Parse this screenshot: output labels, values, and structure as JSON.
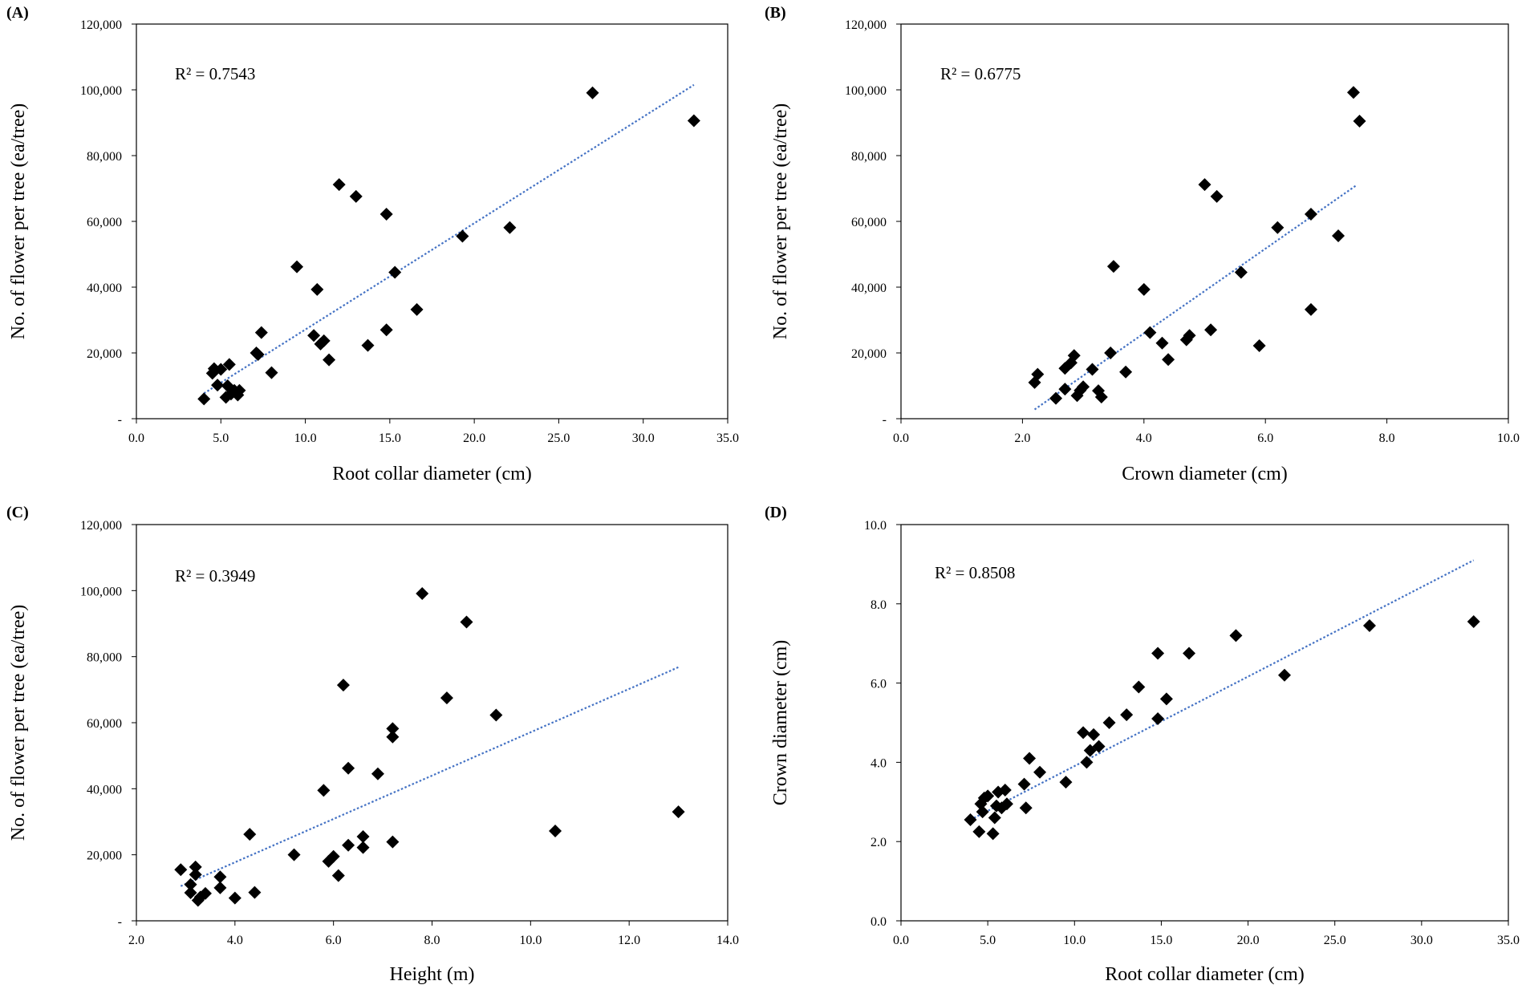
{
  "chart_data": [
    {
      "type": "scatter",
      "panel_label": "(A)",
      "r2_label": "R² = 0.7543",
      "xlabel": "Root collar  diameter  (cm)",
      "ylabel": "No. of flower  per tree  (ea/tree)",
      "xlim": [
        0,
        35
      ],
      "ylim": [
        0,
        120000
      ],
      "xticks": [
        0,
        5,
        10,
        15,
        20,
        25,
        30,
        35
      ],
      "xtick_labels": [
        "0.0",
        "5.0",
        "10.0",
        "15.0",
        "20.0",
        "25.0",
        "30.0",
        "35.0"
      ],
      "yticks": [
        0,
        20000,
        40000,
        60000,
        80000,
        100000,
        120000
      ],
      "ytick_labels": [
        "-",
        "20,000",
        "40,000",
        "60,000",
        "80,000",
        "100,000",
        "120,000"
      ],
      "grid": false,
      "marker_color": "#000000",
      "trendline_color": "#4472c4",
      "trendline": [
        [
          4.0,
          7700
        ],
        [
          33.0,
          101500
        ]
      ],
      "points": [
        [
          4.0,
          6000
        ],
        [
          4.5,
          13800
        ],
        [
          4.6,
          15200
        ],
        [
          4.8,
          10200
        ],
        [
          5.0,
          15000
        ],
        [
          5.3,
          6500
        ],
        [
          5.4,
          10000
        ],
        [
          5.5,
          16500
        ],
        [
          5.6,
          7500
        ],
        [
          5.8,
          8600
        ],
        [
          6.0,
          7200
        ],
        [
          6.1,
          8600
        ],
        [
          7.1,
          20000
        ],
        [
          7.2,
          19500
        ],
        [
          7.4,
          26200
        ],
        [
          8.0,
          14000
        ],
        [
          9.5,
          46200
        ],
        [
          10.5,
          25300
        ],
        [
          10.7,
          39300
        ],
        [
          10.9,
          22700
        ],
        [
          11.1,
          23700
        ],
        [
          11.4,
          17900
        ],
        [
          12.0,
          71200
        ],
        [
          13.0,
          67600
        ],
        [
          13.7,
          22300
        ],
        [
          14.8,
          62200
        ],
        [
          14.8,
          27000
        ],
        [
          15.3,
          44500
        ],
        [
          16.6,
          33200
        ],
        [
          19.3,
          55500
        ],
        [
          22.1,
          58100
        ],
        [
          27.0,
          99100
        ],
        [
          33.0,
          90600
        ]
      ]
    },
    {
      "type": "scatter",
      "panel_label": "(B)",
      "r2_label": "R² = 0.6775",
      "xlabel": "Crown diameter  (cm)",
      "ylabel": "No. of flower  per tree  (ea/tree)",
      "xlim": [
        0,
        10
      ],
      "ylim": [
        0,
        120000
      ],
      "xticks": [
        0,
        2,
        4,
        6,
        8,
        10
      ],
      "xtick_labels": [
        "0.0",
        "2.0",
        "4.0",
        "6.0",
        "8.0",
        "10.0"
      ],
      "yticks": [
        0,
        20000,
        40000,
        60000,
        80000,
        100000,
        120000
      ],
      "ytick_labels": [
        "-",
        "20,000",
        "40,000",
        "60,000",
        "80,000",
        "100,000",
        "120,000"
      ],
      "grid": false,
      "marker_color": "#000000",
      "trendline_color": "#4472c4",
      "trendline": [
        [
          2.2,
          2800
        ],
        [
          7.5,
          71000
        ]
      ],
      "points": [
        [
          2.2,
          11000
        ],
        [
          2.25,
          13500
        ],
        [
          2.55,
          6200
        ],
        [
          2.7,
          9000
        ],
        [
          2.7,
          15300
        ],
        [
          2.8,
          17000
        ],
        [
          2.85,
          19200
        ],
        [
          2.9,
          7000
        ],
        [
          2.95,
          8600
        ],
        [
          3.0,
          9700
        ],
        [
          3.15,
          15000
        ],
        [
          3.25,
          8500
        ],
        [
          3.3,
          6600
        ],
        [
          3.45,
          20000
        ],
        [
          3.5,
          46300
        ],
        [
          3.7,
          14200
        ],
        [
          4.0,
          39300
        ],
        [
          4.1,
          26200
        ],
        [
          4.3,
          23000
        ],
        [
          4.4,
          18000
        ],
        [
          4.7,
          24000
        ],
        [
          4.75,
          25300
        ],
        [
          5.0,
          71200
        ],
        [
          5.1,
          27000
        ],
        [
          5.2,
          67600
        ],
        [
          5.6,
          44500
        ],
        [
          5.9,
          22200
        ],
        [
          6.2,
          58100
        ],
        [
          6.75,
          62200
        ],
        [
          6.75,
          33200
        ],
        [
          7.2,
          55600
        ],
        [
          7.45,
          99200
        ],
        [
          7.55,
          90500
        ]
      ]
    },
    {
      "type": "scatter",
      "panel_label": "(C)",
      "r2_label": "R² = 0.3949",
      "xlabel": "Height  (m)",
      "ylabel": "No. of flower  per tree  (ea/tree)",
      "xlim": [
        2,
        14
      ],
      "ylim": [
        0,
        120000
      ],
      "xticks": [
        2,
        4,
        6,
        8,
        10,
        12,
        14
      ],
      "xtick_labels": [
        "2.0",
        "4.0",
        "6.0",
        "8.0",
        "10.0",
        "12.0",
        "14.0"
      ],
      "yticks": [
        0,
        20000,
        40000,
        60000,
        80000,
        100000,
        120000
      ],
      "ytick_labels": [
        "-",
        "20,000",
        "40,000",
        "60,000",
        "80,000",
        "100,000",
        "120,000"
      ],
      "grid": false,
      "marker_color": "#000000",
      "trendline_color": "#4472c4",
      "trendline": [
        [
          2.9,
          10500
        ],
        [
          13.0,
          76800
        ]
      ],
      "points": [
        [
          2.9,
          15500
        ],
        [
          3.1,
          11000
        ],
        [
          3.1,
          8500
        ],
        [
          3.2,
          16300
        ],
        [
          3.2,
          14000
        ],
        [
          3.25,
          6200
        ],
        [
          3.3,
          7200
        ],
        [
          3.4,
          8300
        ],
        [
          3.7,
          13300
        ],
        [
          3.7,
          10000
        ],
        [
          4.0,
          6900
        ],
        [
          4.3,
          26200
        ],
        [
          4.4,
          8600
        ],
        [
          5.2,
          20000
        ],
        [
          5.8,
          39500
        ],
        [
          5.9,
          18000
        ],
        [
          6.0,
          19500
        ],
        [
          6.1,
          13700
        ],
        [
          6.2,
          71400
        ],
        [
          6.3,
          46200
        ],
        [
          6.3,
          22900
        ],
        [
          6.6,
          25500
        ],
        [
          6.6,
          22200
        ],
        [
          6.9,
          44500
        ],
        [
          7.2,
          58200
        ],
        [
          7.2,
          55700
        ],
        [
          7.2,
          23900
        ],
        [
          7.8,
          99100
        ],
        [
          8.3,
          67500
        ],
        [
          8.7,
          90500
        ],
        [
          9.3,
          62300
        ],
        [
          10.5,
          27200
        ],
        [
          13.0,
          33000
        ]
      ]
    },
    {
      "type": "scatter",
      "panel_label": "(D)",
      "r2_label": "R² = 0.8508",
      "xlabel": "Root collar  diameter  (cm)",
      "ylabel": "Crown diameter  (cm)",
      "xlim": [
        0,
        35
      ],
      "ylim": [
        0,
        10
      ],
      "xticks": [
        0,
        5,
        10,
        15,
        20,
        25,
        30,
        35
      ],
      "xtick_labels": [
        "0.0",
        "5.0",
        "10.0",
        "15.0",
        "20.0",
        "25.0",
        "30.0",
        "35.0"
      ],
      "yticks": [
        0,
        2,
        4,
        6,
        8,
        10
      ],
      "ytick_labels": [
        "0.0",
        "2.0",
        "4.0",
        "6.0",
        "8.0",
        "10.0"
      ],
      "grid": false,
      "marker_color": "#000000",
      "trendline_color": "#4472c4",
      "trendline": [
        [
          4.0,
          2.55
        ],
        [
          33.0,
          9.1
        ]
      ],
      "points": [
        [
          4.0,
          2.55
        ],
        [
          4.5,
          2.25
        ],
        [
          4.6,
          2.95
        ],
        [
          4.7,
          2.75
        ],
        [
          4.8,
          3.1
        ],
        [
          5.0,
          3.15
        ],
        [
          5.3,
          2.2
        ],
        [
          5.4,
          2.6
        ],
        [
          5.5,
          2.9
        ],
        [
          5.6,
          3.25
        ],
        [
          5.8,
          2.85
        ],
        [
          6.0,
          3.3
        ],
        [
          6.1,
          2.95
        ],
        [
          7.1,
          3.45
        ],
        [
          7.2,
          2.85
        ],
        [
          7.4,
          4.1
        ],
        [
          8.0,
          3.75
        ],
        [
          9.5,
          3.5
        ],
        [
          10.5,
          4.75
        ],
        [
          10.7,
          4.0
        ],
        [
          10.9,
          4.3
        ],
        [
          11.1,
          4.7
        ],
        [
          11.4,
          4.4
        ],
        [
          12.0,
          5.0
        ],
        [
          13.0,
          5.2
        ],
        [
          13.7,
          5.9
        ],
        [
          14.8,
          6.75
        ],
        [
          14.8,
          5.1
        ],
        [
          15.3,
          5.6
        ],
        [
          16.6,
          6.75
        ],
        [
          19.3,
          7.2
        ],
        [
          22.1,
          6.2
        ],
        [
          27.0,
          7.45
        ],
        [
          33.0,
          7.55
        ]
      ]
    }
  ]
}
